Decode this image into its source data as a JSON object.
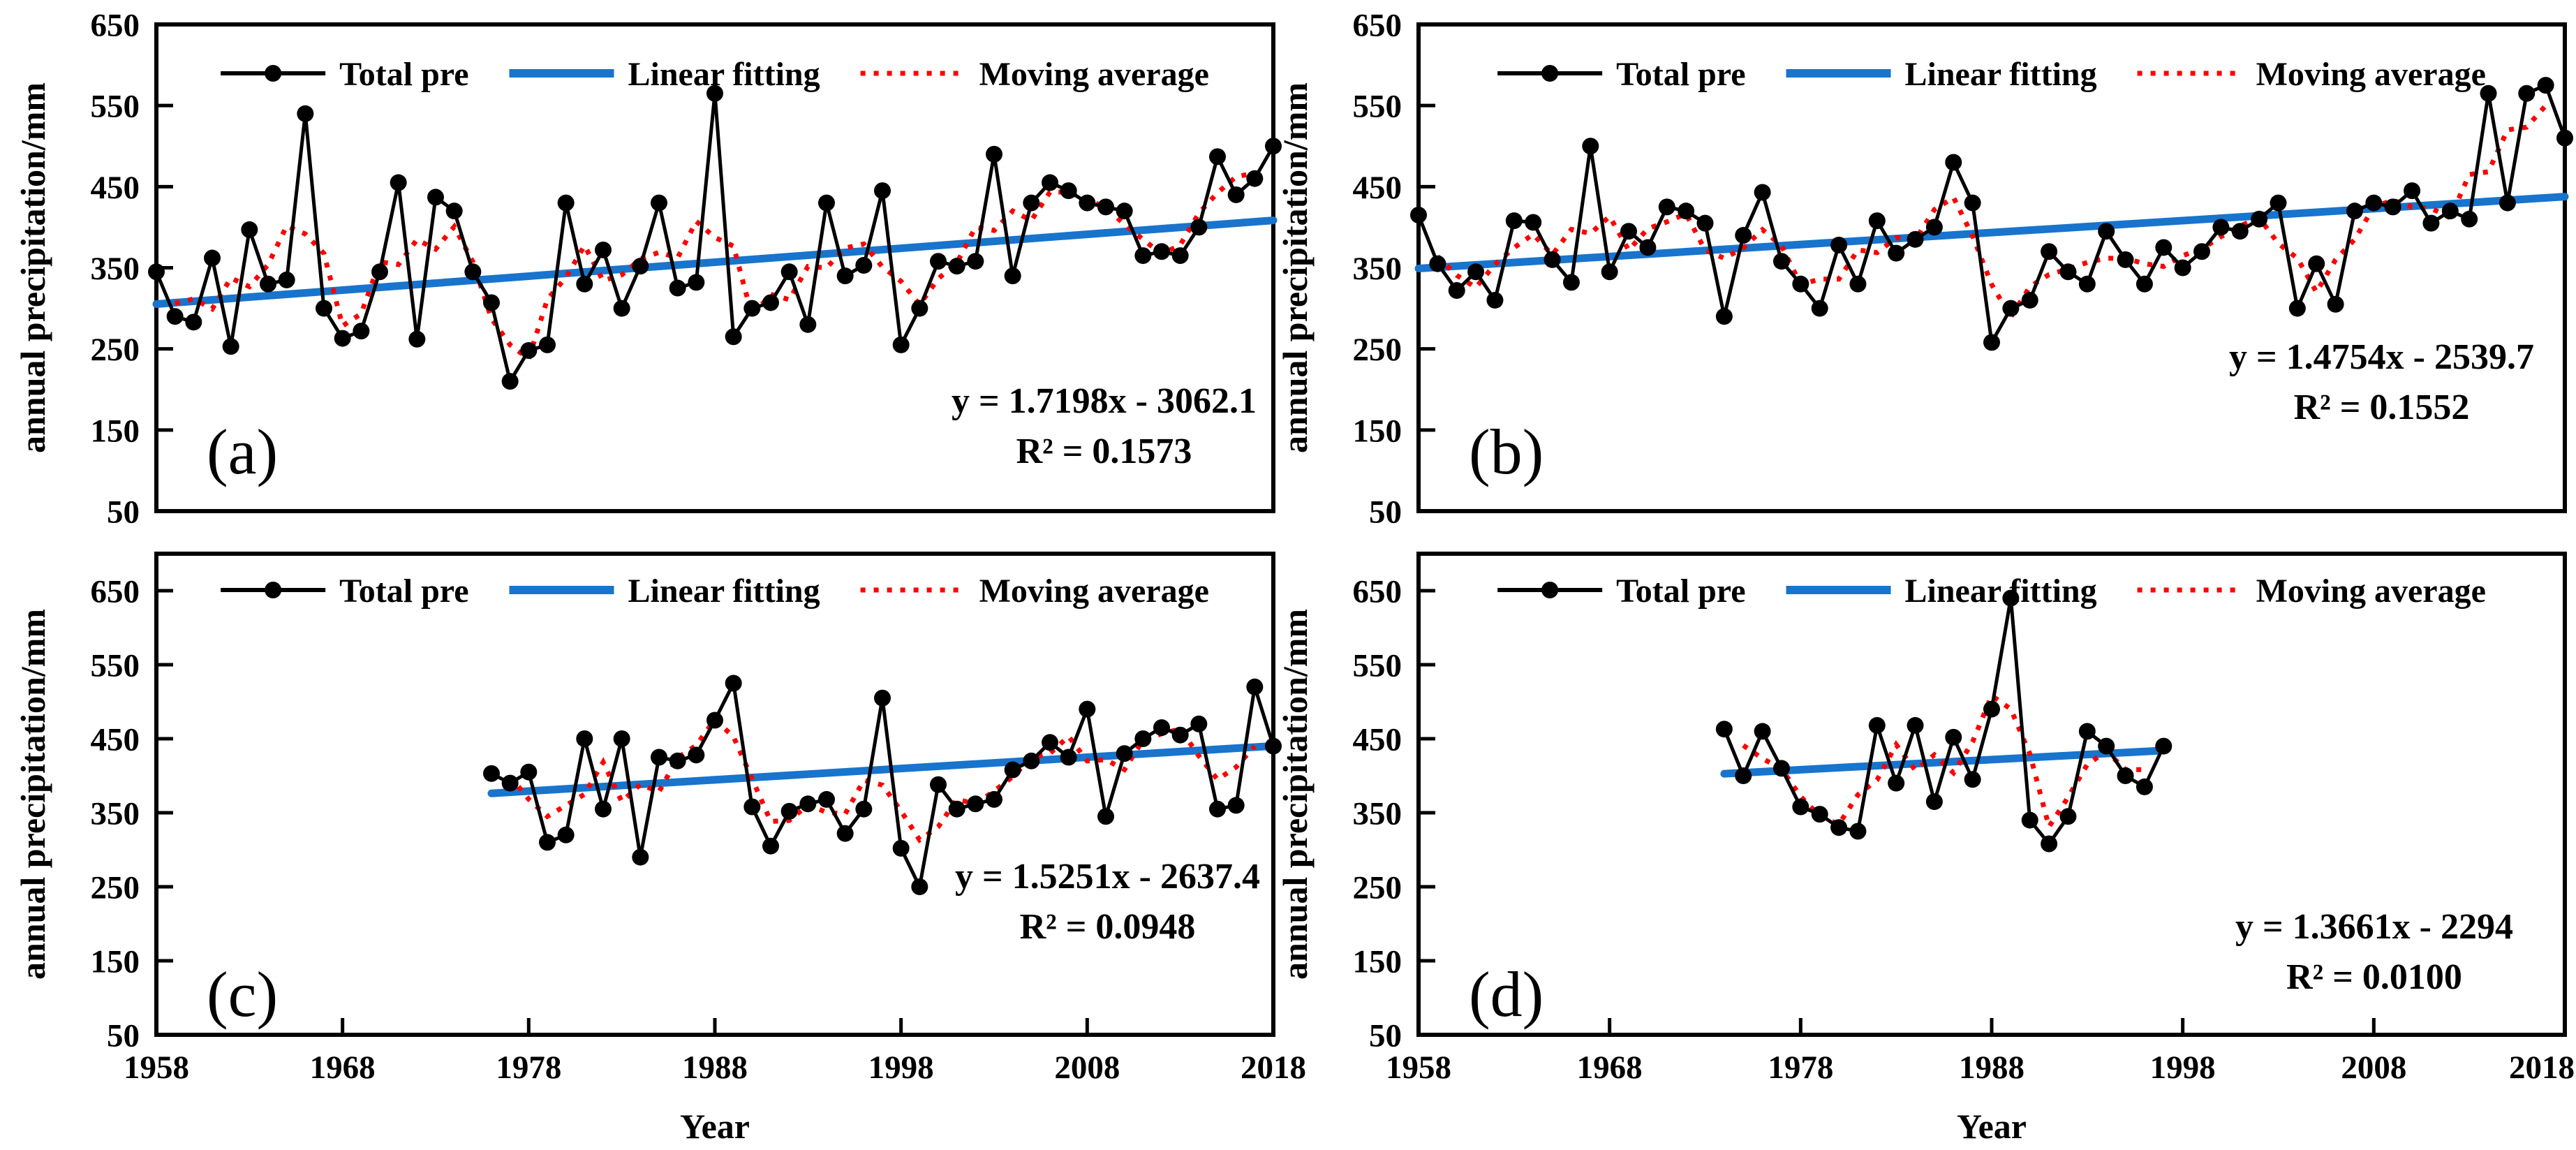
{
  "figure": {
    "y_axis_title": "annual precipitation/mm",
    "x_axis_title": "Year",
    "legend": {
      "total_pre": "Total pre",
      "linear_fitting": "Linear fitting",
      "moving_average": "Moving average"
    },
    "colors": {
      "series": "#000000",
      "fit_line": "#1874CD",
      "moving_average": "#FF0000",
      "background": "#FFFFFF",
      "frame": "#000000"
    }
  },
  "chart_data": [
    {
      "type": "line",
      "panel_label": "(a)",
      "equation": "y = 1.7198x - 3062.1",
      "r_squared": "R² = 0.1573",
      "fit": {
        "slope": 1.7198,
        "intercept": -3062.1,
        "x_range": [
          1958,
          2018
        ]
      },
      "moving_average_window": 3,
      "xlim": [
        1958,
        2018
      ],
      "ylim": [
        50,
        650
      ],
      "y_ticks": [
        50,
        150,
        250,
        350,
        450,
        550,
        650
      ],
      "x_ticks": [
        1958,
        1968,
        1978,
        1988,
        1998,
        2008,
        2018
      ],
      "show_x_tick_labels": false,
      "ylabel": "annual precipitation/mm",
      "xlabel": "Year",
      "years": [
        1958,
        1959,
        1960,
        1961,
        1962,
        1963,
        1964,
        1965,
        1966,
        1967,
        1968,
        1969,
        1970,
        1971,
        1972,
        1973,
        1974,
        1975,
        1976,
        1977,
        1978,
        1979,
        1980,
        1981,
        1982,
        1983,
        1984,
        1985,
        1986,
        1987,
        1988,
        1989,
        1990,
        1991,
        1992,
        1993,
        1994,
        1995,
        1996,
        1997,
        1998,
        1999,
        2000,
        2001,
        2002,
        2003,
        2004,
        2005,
        2006,
        2007,
        2008,
        2009,
        2010,
        2011,
        2012,
        2013,
        2014,
        2015,
        2016,
        2017,
        2018
      ],
      "values": [
        345,
        290,
        283,
        362,
        253,
        397,
        330,
        335,
        540,
        300,
        263,
        272,
        345,
        455,
        262,
        437,
        420,
        345,
        307,
        210,
        248,
        255,
        430,
        330,
        372,
        300,
        352,
        430,
        325,
        332,
        565,
        265,
        300,
        307,
        345,
        280,
        430,
        340,
        353,
        445,
        255,
        300,
        358,
        352,
        358,
        490,
        340,
        430,
        455,
        445,
        430,
        425,
        420,
        365,
        370,
        365,
        400,
        487,
        440,
        460,
        500
      ]
    },
    {
      "type": "line",
      "panel_label": "(b)",
      "equation": "y = 1.4754x - 2539.7",
      "r_squared": "R² = 0.1552",
      "fit": {
        "slope": 1.4754,
        "intercept": -2539.7,
        "x_range": [
          1958,
          2018
        ]
      },
      "moving_average_window": 3,
      "xlim": [
        1958,
        2018
      ],
      "ylim": [
        50,
        650
      ],
      "y_ticks": [
        50,
        150,
        250,
        350,
        450,
        550,
        650
      ],
      "x_ticks": [
        1958,
        1968,
        1978,
        1988,
        1998,
        2008,
        2018
      ],
      "show_x_tick_labels": false,
      "ylabel": "annual precipitation/mm",
      "xlabel": "Year",
      "years": [
        1958,
        1959,
        1960,
        1961,
        1962,
        1963,
        1964,
        1965,
        1966,
        1967,
        1968,
        1969,
        1970,
        1971,
        1972,
        1973,
        1974,
        1975,
        1976,
        1977,
        1978,
        1979,
        1980,
        1981,
        1982,
        1983,
        1984,
        1985,
        1986,
        1987,
        1988,
        1989,
        1990,
        1991,
        1992,
        1993,
        1994,
        1995,
        1996,
        1997,
        1998,
        1999,
        2000,
        2001,
        2002,
        2003,
        2004,
        2005,
        2006,
        2007,
        2008,
        2009,
        2010,
        2011,
        2012,
        2013,
        2014,
        2015,
        2016,
        2017,
        2018
      ],
      "values": [
        415,
        355,
        322,
        345,
        310,
        408,
        406,
        360,
        332,
        500,
        345,
        395,
        375,
        425,
        420,
        405,
        290,
        390,
        443,
        358,
        330,
        300,
        378,
        330,
        408,
        368,
        385,
        400,
        480,
        430,
        258,
        300,
        310,
        370,
        345,
        330,
        395,
        360,
        330,
        375,
        350,
        370,
        400,
        395,
        410,
        430,
        300,
        355,
        305,
        420,
        430,
        425,
        445,
        405,
        420,
        410,
        565,
        430,
        565,
        575,
        510
      ]
    },
    {
      "type": "line",
      "panel_label": "(c)",
      "equation": "y = 1.5251x - 2637.4",
      "r_squared": "R² = 0.0948",
      "fit": {
        "slope": 1.5251,
        "intercept": -2637.4,
        "x_range": [
          1976,
          2018
        ]
      },
      "moving_average_window": 3,
      "xlim": [
        1958,
        2018
      ],
      "ylim": [
        50,
        700
      ],
      "y_ticks": [
        50,
        150,
        250,
        350,
        450,
        550,
        650
      ],
      "x_ticks": [
        1958,
        1968,
        1978,
        1988,
        1998,
        2008,
        2018
      ],
      "show_x_tick_labels": true,
      "ylabel": "annual precipitation/mm",
      "xlabel": "Year",
      "years": [
        1976,
        1977,
        1978,
        1979,
        1980,
        1981,
        1982,
        1983,
        1984,
        1985,
        1986,
        1987,
        1988,
        1989,
        1990,
        1991,
        1992,
        1993,
        1994,
        1995,
        1996,
        1997,
        1998,
        1999,
        2000,
        2001,
        2002,
        2003,
        2004,
        2005,
        2006,
        2007,
        2008,
        2009,
        2010,
        2011,
        2012,
        2013,
        2014,
        2015,
        2016,
        2017,
        2018
      ],
      "values": [
        403,
        390,
        405,
        310,
        320,
        450,
        355,
        450,
        290,
        425,
        420,
        428,
        475,
        525,
        358,
        305,
        352,
        362,
        368,
        322,
        355,
        505,
        302,
        250,
        388,
        355,
        362,
        368,
        408,
        420,
        445,
        425,
        490,
        345,
        430,
        450,
        465,
        455,
        470,
        355,
        360,
        520,
        440
      ]
    },
    {
      "type": "line",
      "panel_label": "(d)",
      "equation": "y = 1.3661x - 2294",
      "r_squared": "R² = 0.0100",
      "fit": {
        "slope": 1.3661,
        "intercept": -2294,
        "x_range": [
          1974,
          1997
        ]
      },
      "moving_average_window": 3,
      "xlim": [
        1958,
        2018
      ],
      "ylim": [
        50,
        700
      ],
      "y_ticks": [
        50,
        150,
        250,
        350,
        450,
        550,
        650
      ],
      "x_ticks": [
        1958,
        1968,
        1978,
        1988,
        1998,
        2008,
        2018
      ],
      "show_x_tick_labels": true,
      "ylabel": "annual precipitation/mm",
      "xlabel": "Year",
      "years": [
        1974,
        1975,
        1976,
        1977,
        1978,
        1979,
        1980,
        1981,
        1982,
        1983,
        1984,
        1985,
        1986,
        1987,
        1988,
        1989,
        1990,
        1991,
        1992,
        1993,
        1994,
        1995,
        1996,
        1997
      ],
      "values": [
        463,
        400,
        460,
        410,
        358,
        348,
        330,
        325,
        468,
        390,
        468,
        365,
        452,
        395,
        490,
        640,
        340,
        308,
        345,
        460,
        440,
        400,
        385,
        440
      ]
    }
  ]
}
